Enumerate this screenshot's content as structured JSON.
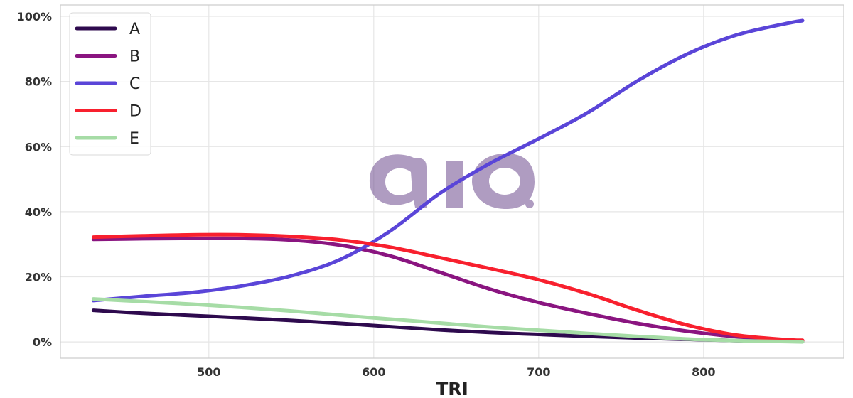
{
  "chart_data": {
    "type": "line",
    "xlabel": "TRI",
    "ylabel": "",
    "xlim": [
      410,
      885
    ],
    "ylim": [
      -0.05,
      1.035
    ],
    "x_ticks": [
      500,
      600,
      700,
      800
    ],
    "x_tick_labels": [
      "500",
      "600",
      "700",
      "800"
    ],
    "y_ticks": [
      0,
      0.2,
      0.4,
      0.6,
      0.8,
      1.0
    ],
    "y_tick_labels": [
      "0%",
      "20%",
      "40%",
      "60%",
      "80%",
      "100%"
    ],
    "grid": true,
    "legend_position": "top-left",
    "watermark": "aio.",
    "x": [
      430,
      460,
      490,
      520,
      550,
      580,
      610,
      640,
      670,
      700,
      730,
      760,
      790,
      820,
      850,
      860
    ],
    "series": [
      {
        "name": "A",
        "color": "#2e0a4e",
        "values": [
          0.097,
          0.088,
          0.081,
          0.074,
          0.066,
          0.057,
          0.047,
          0.037,
          0.029,
          0.023,
          0.017,
          0.012,
          0.008,
          0.004,
          0.002,
          0.001
        ]
      },
      {
        "name": "B",
        "color": "#8a1580",
        "values": [
          0.315,
          0.317,
          0.318,
          0.318,
          0.313,
          0.297,
          0.264,
          0.214,
          0.163,
          0.121,
          0.087,
          0.057,
          0.033,
          0.016,
          0.006,
          0.004
        ]
      },
      {
        "name": "C",
        "color": "#5a45d8",
        "values": [
          0.127,
          0.14,
          0.152,
          0.172,
          0.203,
          0.254,
          0.341,
          0.456,
          0.547,
          0.624,
          0.705,
          0.802,
          0.884,
          0.943,
          0.978,
          0.987
        ]
      },
      {
        "name": "D",
        "color": "#f8202e",
        "values": [
          0.322,
          0.326,
          0.329,
          0.329,
          0.324,
          0.313,
          0.291,
          0.259,
          0.226,
          0.191,
          0.148,
          0.097,
          0.052,
          0.021,
          0.007,
          0.005
        ]
      },
      {
        "name": "E",
        "color": "#a6dca6",
        "values": [
          0.132,
          0.124,
          0.116,
          0.106,
          0.095,
          0.082,
          0.07,
          0.058,
          0.046,
          0.036,
          0.026,
          0.017,
          0.009,
          0.004,
          0.001,
          0.0
        ]
      }
    ]
  }
}
